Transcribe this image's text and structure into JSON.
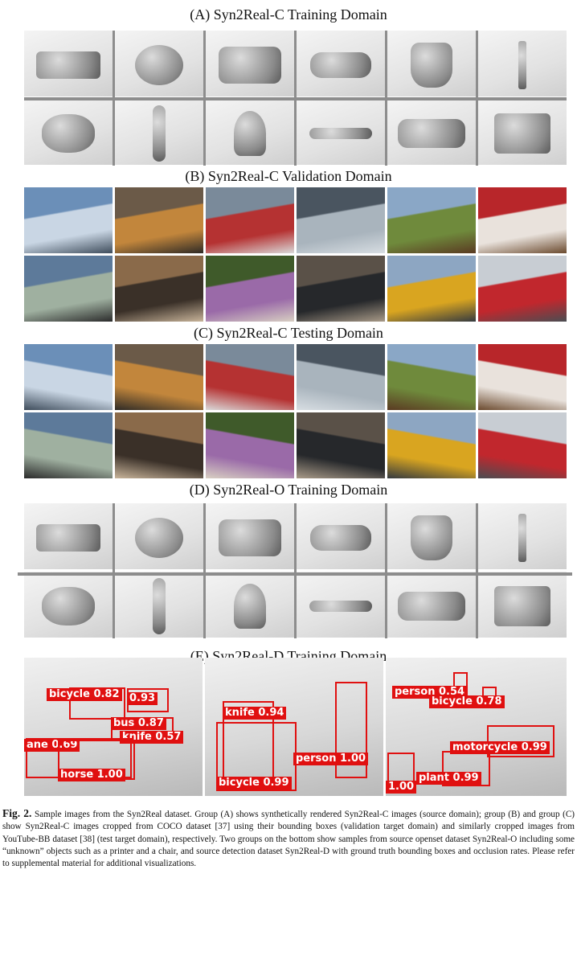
{
  "sections": [
    {
      "title": "(A) Syn2Real-C Training Domain",
      "kind": "synthetic",
      "rows": [
        [
          "aeroplane",
          "bicycle",
          "bus",
          "car",
          "horse",
          "knife"
        ],
        [
          "motorcycle",
          "person",
          "plant",
          "skateboard",
          "train",
          "truck"
        ]
      ]
    },
    {
      "title": "(B) Syn2Real-C Validation Domain",
      "kind": "photo",
      "rows": [
        [
          "aeroplane",
          "bicycle",
          "bus",
          "car",
          "horse",
          "knife"
        ],
        [
          "motorcycle",
          "person",
          "plant",
          "skateboard",
          "train",
          "truck"
        ]
      ]
    },
    {
      "title": "(C) Syn2Real-C Testing Domain",
      "kind": "photo",
      "rows": [
        [
          "aeroplane",
          "bicycle",
          "bus",
          "car",
          "horse",
          "knife"
        ],
        [
          "motorcycle",
          "person",
          "plant",
          "skateboard",
          "train",
          "truck"
        ]
      ]
    },
    {
      "title": "(D) Syn2Real-O Training Domain",
      "kind": "synthetic",
      "rows": [
        [
          "printer",
          "chair",
          "bus",
          "car",
          "horse",
          "knife"
        ],
        [
          "motorcycle",
          "person",
          "plant",
          "skateboard",
          "train",
          "truck"
        ]
      ]
    }
  ],
  "detection": {
    "title": "(E) Syn2Real-D Training Domain",
    "panels": [
      {
        "labels": [
          {
            "text": "bicycle 0.82"
          },
          {
            "text": "0.93"
          },
          {
            "text": "bus 0.87"
          },
          {
            "text": "knife 0.57"
          },
          {
            "text": "ane 0.69"
          },
          {
            "text": "horse 1.00"
          }
        ]
      },
      {
        "labels": [
          {
            "text": "knife 0.94"
          },
          {
            "text": "person 1.00"
          },
          {
            "text": "bicycle 0.99"
          }
        ]
      },
      {
        "labels": [
          {
            "text": "person 0.54"
          },
          {
            "text": "bicycle 0.78"
          },
          {
            "text": "motorcycle 0.99"
          },
          {
            "text": "1.00"
          },
          {
            "text": "plant 0.99"
          }
        ]
      }
    ]
  },
  "caption": {
    "fig_label": "Fig. 2.",
    "text": "Sample images from the Syn2Real dataset. Group (A) shows synthetically rendered Syn2Real-C images (source domain); group (B) and group (C) show Syn2Real-C images cropped from COCO dataset [37] using their bounding boxes (validation target domain) and similarly cropped images from YouTube-BB dataset [38] (test target domain), respectively. Two groups on the bottom show samples from source openset dataset Syn2Real-O including some “unknown” objects such as a printer and a chair, and source detection dataset Syn2Real-D with ground truth bounding boxes and occlusion rates. Please refer to supplemental material for additional visualizations."
  }
}
